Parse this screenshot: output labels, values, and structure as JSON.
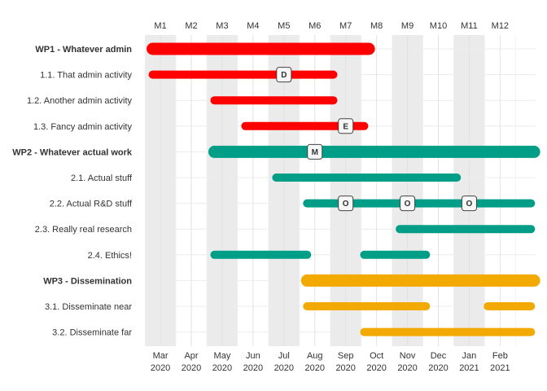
{
  "chart_data": {
    "type": "gantt",
    "title": "",
    "months": [
      "M1",
      "M2",
      "M3",
      "M4",
      "M5",
      "M6",
      "M7",
      "M8",
      "M9",
      "M10",
      "M11",
      "M12"
    ],
    "shaded_months": [
      1,
      3,
      5,
      7,
      9,
      11
    ],
    "x_axis_ticks": [
      {
        "month": 1,
        "label": "Mar",
        "year": "2020"
      },
      {
        "month": 2,
        "label": "Apr",
        "year": "2020"
      },
      {
        "month": 3,
        "label": "May",
        "year": "2020"
      },
      {
        "month": 4,
        "label": "Jun",
        "year": "2020"
      },
      {
        "month": 5,
        "label": "Jul",
        "year": "2020"
      },
      {
        "month": 6,
        "label": "Aug",
        "year": "2020"
      },
      {
        "month": 7,
        "label": "Sep",
        "year": "2020"
      },
      {
        "month": 8,
        "label": "Oct",
        "year": "2020"
      },
      {
        "month": 9,
        "label": "Nov",
        "year": "2020"
      },
      {
        "month": 10,
        "label": "Dec",
        "year": "2020"
      },
      {
        "month": 11,
        "label": "Jan",
        "year": "2021"
      },
      {
        "month": 12,
        "label": "Feb",
        "year": "2021"
      }
    ],
    "x_range": [
      0.55,
      13.15
    ],
    "colors": {
      "WP1": "#ff0000",
      "WP2": "#009e87",
      "WP3": "#f2a900"
    },
    "rows": [
      {
        "label": "WP1 - Whatever admin",
        "wp": "WP1",
        "bold": true,
        "segments": [
          [
            0.75,
            7.75
          ]
        ]
      },
      {
        "label": "1.1. That admin activity",
        "wp": "WP1",
        "bold": false,
        "segments": [
          [
            0.75,
            6.6
          ]
        ]
      },
      {
        "label": "1.2. Another admin activity",
        "wp": "WP1",
        "bold": false,
        "segments": [
          [
            2.75,
            6.6
          ]
        ]
      },
      {
        "label": "1.3. Fancy admin activity",
        "wp": "WP1",
        "bold": false,
        "segments": [
          [
            3.75,
            7.6
          ]
        ]
      },
      {
        "label": "WP2 - Whatever actual work",
        "wp": "WP2",
        "bold": true,
        "segments": [
          [
            2.75,
            13.1
          ]
        ]
      },
      {
        "label": "2.1. Actual stuff",
        "wp": "WP2",
        "bold": false,
        "segments": [
          [
            4.75,
            10.6
          ]
        ]
      },
      {
        "label": "2.2. Actual R&D stuff",
        "wp": "WP2",
        "bold": false,
        "segments": [
          [
            5.75,
            13.0
          ]
        ]
      },
      {
        "label": "2.3. Really real research",
        "wp": "WP2",
        "bold": false,
        "segments": [
          [
            8.75,
            13.0
          ]
        ]
      },
      {
        "label": "2.4. Ethics!",
        "wp": "WP2",
        "bold": false,
        "segments": [
          [
            2.75,
            5.75
          ],
          [
            7.6,
            9.6
          ]
        ]
      },
      {
        "label": "WP3 - Dissemination",
        "wp": "WP3",
        "bold": true,
        "segments": [
          [
            5.75,
            13.1
          ]
        ]
      },
      {
        "label": "3.1. Disseminate near",
        "wp": "WP3",
        "bold": false,
        "segments": [
          [
            5.75,
            9.6
          ],
          [
            11.6,
            13.0
          ]
        ]
      },
      {
        "label": "3.2. Disseminate far",
        "wp": "WP3",
        "bold": false,
        "segments": [
          [
            7.6,
            13.0
          ]
        ]
      }
    ],
    "milestones": [
      {
        "row": 1,
        "x": 5.0,
        "label": "D"
      },
      {
        "row": 3,
        "x": 7.0,
        "label": "E"
      },
      {
        "row": 4,
        "x": 6.0,
        "label": "M"
      },
      {
        "row": 6,
        "x": 7.0,
        "label": "O"
      },
      {
        "row": 6,
        "x": 9.0,
        "label": "O"
      },
      {
        "row": 6,
        "x": 11.0,
        "label": "O"
      }
    ]
  }
}
